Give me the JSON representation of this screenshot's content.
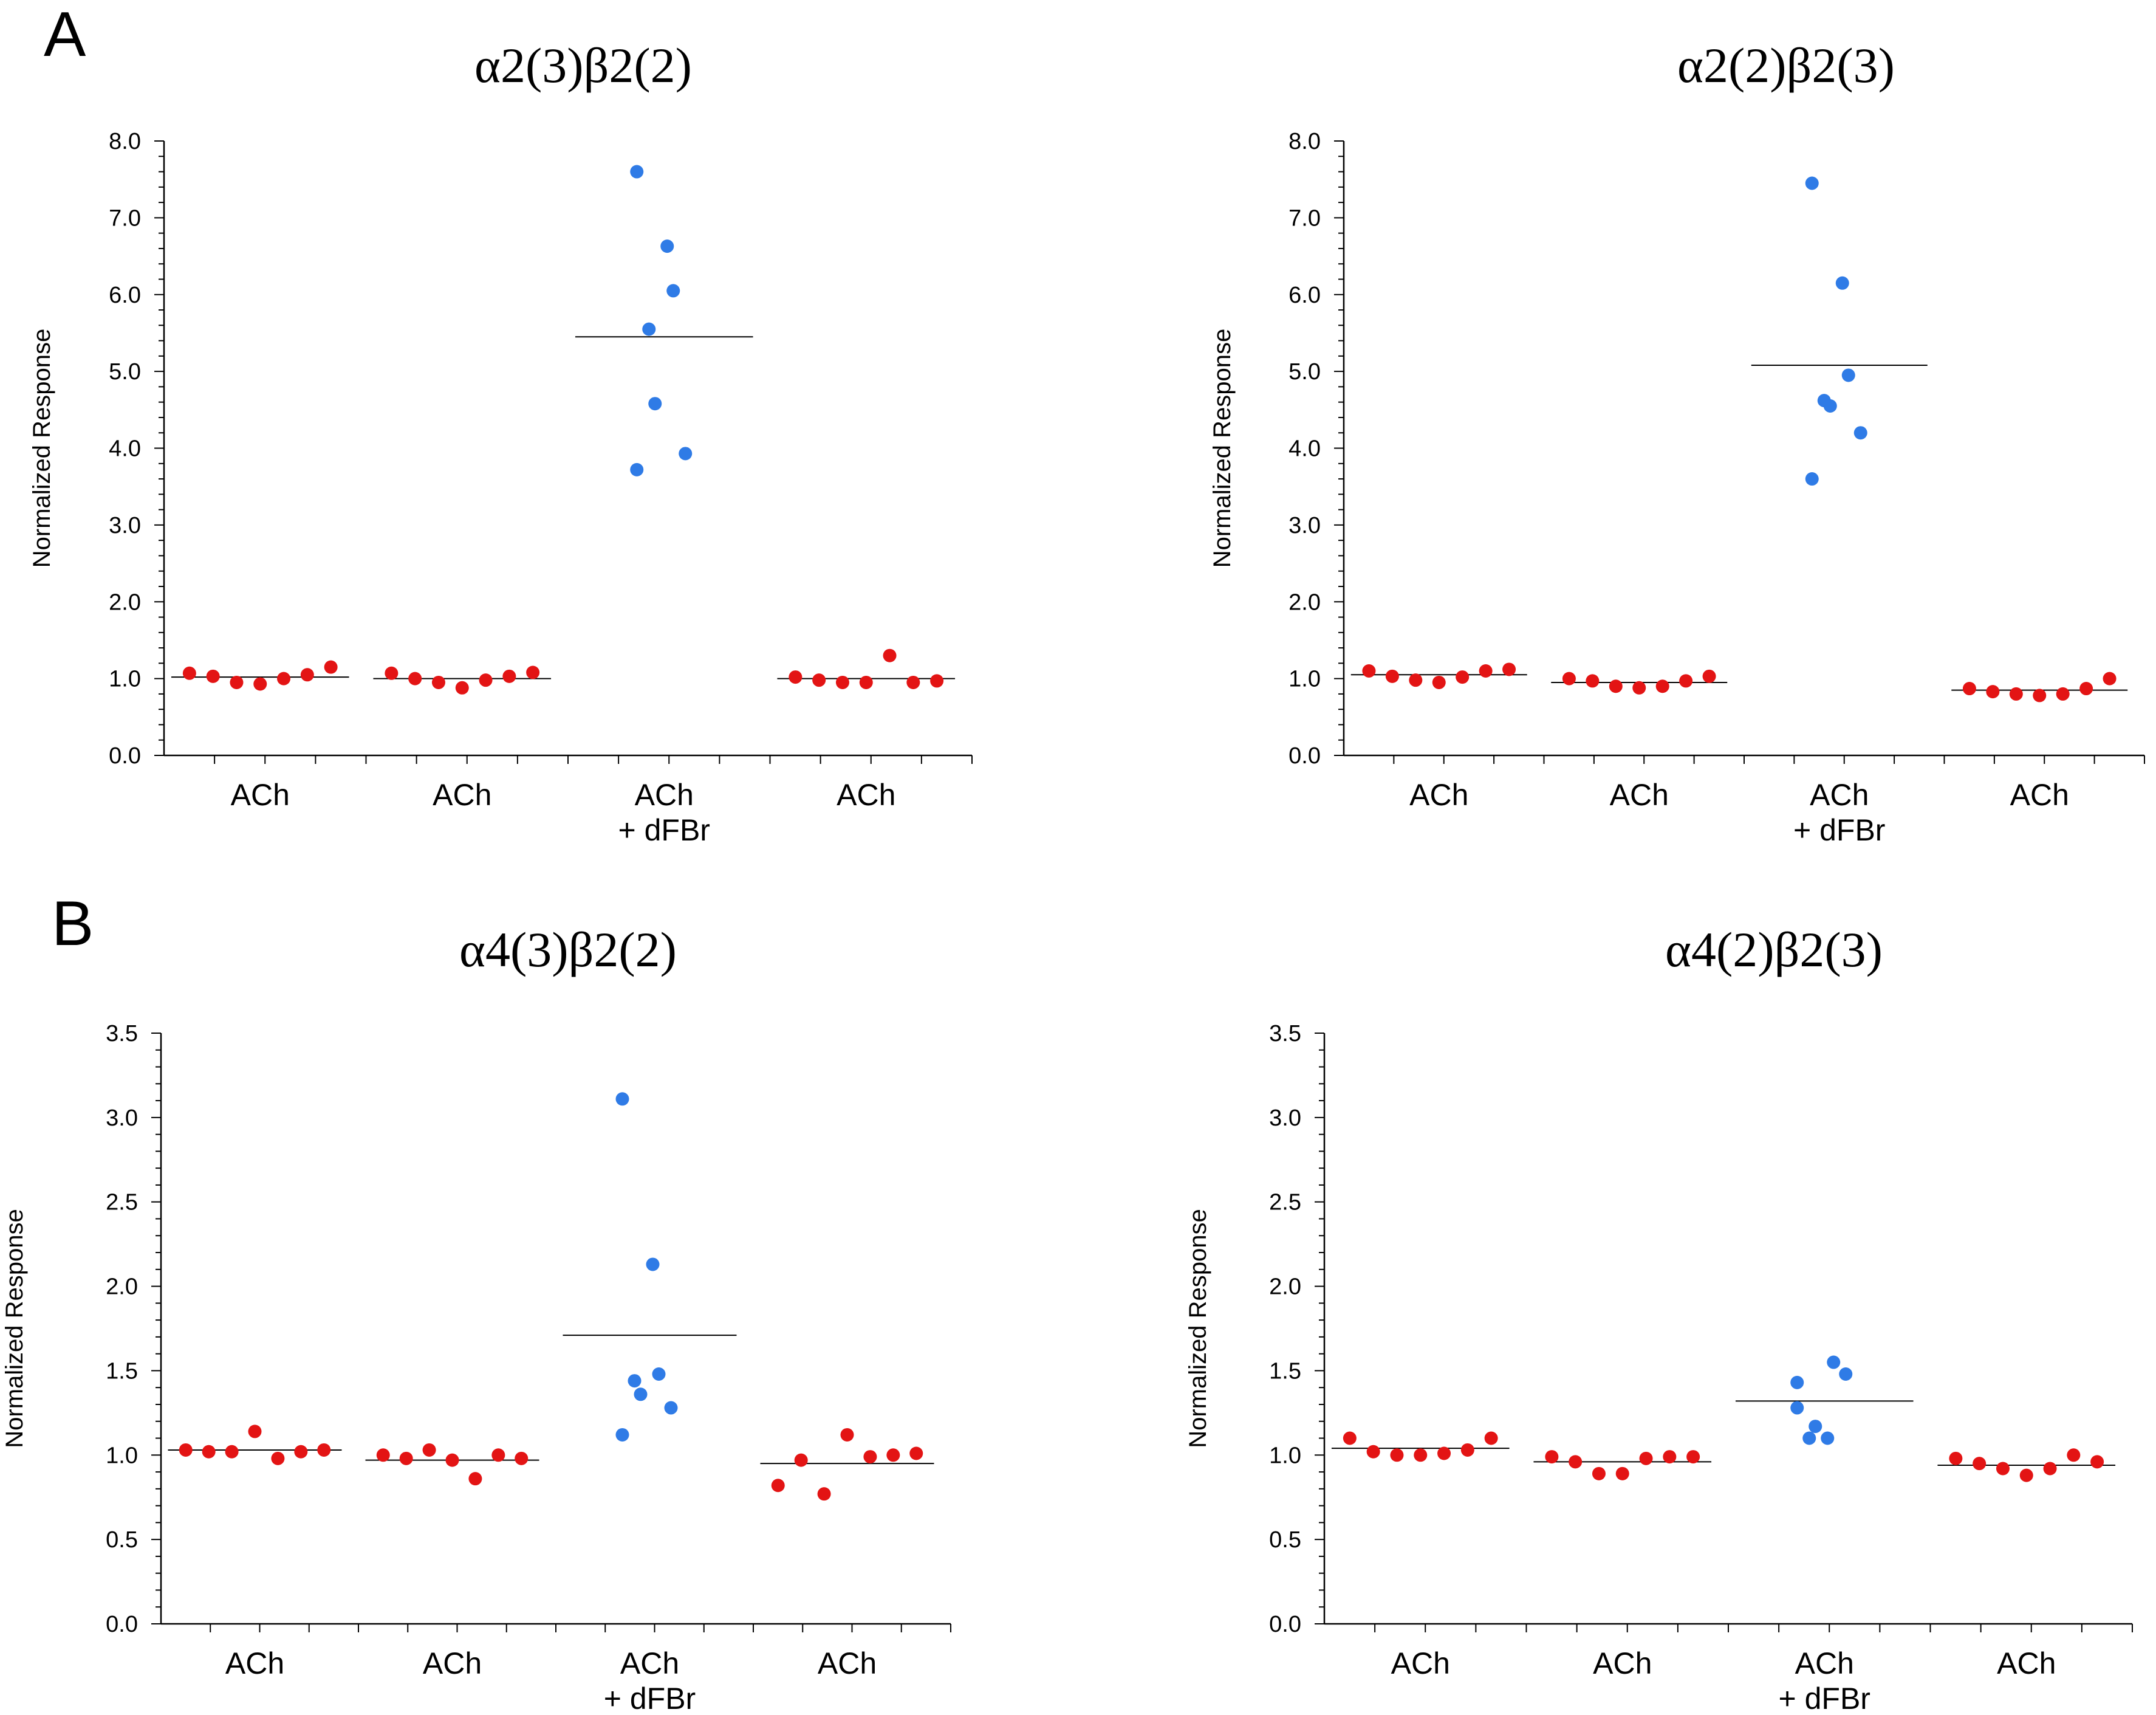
{
  "panel_labels": [
    "A",
    "B"
  ],
  "colors": {
    "first_ach": "#e31414",
    "dfbr": "#2f7be6",
    "mean_line": "#000000"
  },
  "chart_data": [
    {
      "type": "scatter",
      "panel": "A",
      "title": "α2(3)β2(2)",
      "xlabel": "",
      "ylabel": "Normalized Response",
      "ylim": [
        0,
        8
      ],
      "yticks": [
        "0.0",
        "1.0",
        "2.0",
        "3.0",
        "4.0",
        "5.0",
        "6.0",
        "7.0",
        "8.0"
      ],
      "categories": [
        [
          "ACh"
        ],
        [
          "ACh"
        ],
        [
          "ACh",
          "+ dFBr"
        ],
        [
          "ACh"
        ]
      ],
      "series": [
        {
          "values": [
            [
              1.07,
              1.03,
              0.95,
              0.93,
              1.0,
              1.05,
              1.15
            ],
            [
              1.07,
              1.0,
              0.95,
              0.88,
              0.98,
              1.03,
              1.08
            ],
            [
              7.6,
              6.63,
              6.05,
              5.55,
              4.58,
              3.93,
              3.72
            ],
            [
              1.02,
              0.98,
              0.95,
              0.95,
              1.3,
              0.95,
              0.97
            ]
          ],
          "means": [
            1.02,
            1.0,
            5.45,
            1.0
          ],
          "colors": [
            "first_ach",
            "first_ach",
            "dfbr",
            "first_ach"
          ]
        }
      ]
    },
    {
      "type": "scatter",
      "panel": "A",
      "title": "α2(2)β2(3)",
      "xlabel": "",
      "ylabel": "Normalized Response",
      "ylim": [
        0,
        8
      ],
      "yticks": [
        "0.0",
        "1.0",
        "2.0",
        "3.0",
        "4.0",
        "5.0",
        "6.0",
        "7.0",
        "8.0"
      ],
      "categories": [
        [
          "ACh"
        ],
        [
          "ACh"
        ],
        [
          "ACh",
          "+ dFBr"
        ],
        [
          "ACh"
        ]
      ],
      "series": [
        {
          "values": [
            [
              1.1,
              1.03,
              0.98,
              0.95,
              1.02,
              1.1,
              1.12
            ],
            [
              1.0,
              0.97,
              0.9,
              0.88,
              0.9,
              0.97,
              1.03
            ],
            [
              7.45,
              6.15,
              4.95,
              4.62,
              4.55,
              4.2,
              3.6
            ],
            [
              0.87,
              0.83,
              0.8,
              0.78,
              0.8,
              0.87,
              1.0
            ]
          ],
          "means": [
            1.05,
            0.95,
            5.08,
            0.85
          ],
          "colors": [
            "first_ach",
            "first_ach",
            "dfbr",
            "first_ach"
          ]
        }
      ]
    },
    {
      "type": "scatter",
      "panel": "B",
      "title": "α4(3)β2(2)",
      "xlabel": "",
      "ylabel": "Normalized Response",
      "ylim": [
        0,
        3.5
      ],
      "yticks": [
        "0.0",
        "0.5",
        "1.0",
        "1.5",
        "2.0",
        "2.5",
        "3.0",
        "3.5"
      ],
      "categories": [
        [
          "ACh"
        ],
        [
          "ACh"
        ],
        [
          "ACh",
          "+ dFBr"
        ],
        [
          "ACh"
        ]
      ],
      "series": [
        {
          "values": [
            [
              1.03,
              1.02,
              1.02,
              1.14,
              0.98,
              1.02,
              1.03
            ],
            [
              1.0,
              0.98,
              1.03,
              0.97,
              0.86,
              1.0,
              0.98
            ],
            [
              3.11,
              2.13,
              1.48,
              1.44,
              1.36,
              1.28,
              1.12
            ],
            [
              0.82,
              0.97,
              0.77,
              1.12,
              0.99,
              1.0,
              1.01
            ]
          ],
          "means": [
            1.03,
            0.97,
            1.71,
            0.95
          ],
          "colors": [
            "first_ach",
            "first_ach",
            "dfbr",
            "first_ach"
          ]
        }
      ]
    },
    {
      "type": "scatter",
      "panel": "B",
      "title": "α4(2)β2(3)",
      "xlabel": "",
      "ylabel": "Normalized Response",
      "ylim": [
        0,
        3.5
      ],
      "yticks": [
        "0.0",
        "0.5",
        "1.0",
        "1.5",
        "2.0",
        "2.5",
        "3.0",
        "3.5"
      ],
      "categories": [
        [
          "ACh"
        ],
        [
          "ACh"
        ],
        [
          "ACh",
          "+ dFBr"
        ],
        [
          "ACh"
        ]
      ],
      "series": [
        {
          "values": [
            [
              1.1,
              1.02,
              1.0,
              1.0,
              1.01,
              1.03,
              1.1
            ],
            [
              0.99,
              0.96,
              0.89,
              0.89,
              0.98,
              0.99,
              0.99
            ],
            [
              1.43,
              1.1,
              1.55,
              1.1,
              1.17,
              1.48,
              1.28
            ],
            [
              0.98,
              0.95,
              0.92,
              0.88,
              0.92,
              1.0,
              0.96
            ]
          ],
          "means": [
            1.04,
            0.96,
            1.32,
            0.94
          ],
          "colors": [
            "first_ach",
            "first_ach",
            "dfbr",
            "first_ach"
          ]
        }
      ]
    }
  ]
}
